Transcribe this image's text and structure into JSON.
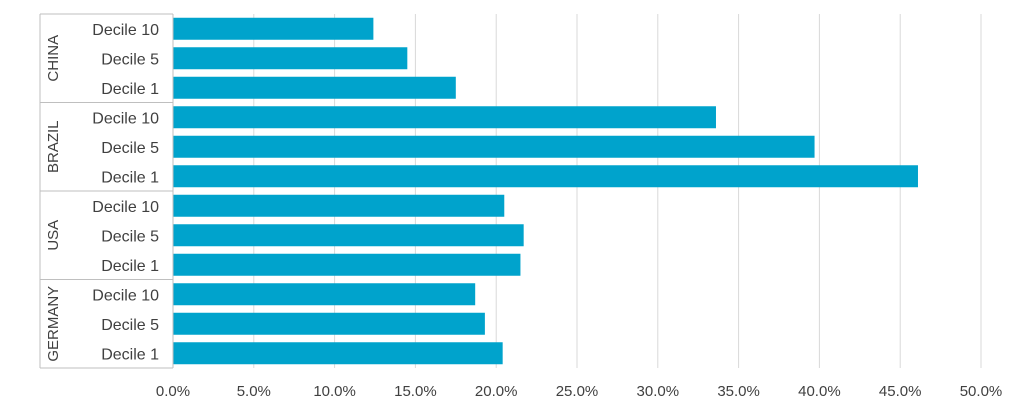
{
  "chart_data": {
    "type": "bar",
    "orientation": "horizontal",
    "title": "",
    "xlabel": "",
    "ylabel": "",
    "xlim": [
      0,
      50
    ],
    "x_ticks": [
      "0.0%",
      "5.0%",
      "10.0%",
      "15.0%",
      "20.0%",
      "25.0%",
      "30.0%",
      "35.0%",
      "40.0%",
      "45.0%",
      "50.0%"
    ],
    "grid": "vertical",
    "bar_color": "#00A3CC",
    "groups": [
      {
        "name": "CHINA",
        "categories": [
          "Decile 10",
          "Decile 5",
          "Decile 1"
        ],
        "values": [
          12.4,
          14.5,
          17.5
        ]
      },
      {
        "name": "BRAZIL",
        "categories": [
          "Decile 10",
          "Decile 5",
          "Decile 1"
        ],
        "values": [
          33.6,
          39.7,
          46.1
        ]
      },
      {
        "name": "USA",
        "categories": [
          "Decile 10",
          "Decile 5",
          "Decile 1"
        ],
        "values": [
          20.5,
          21.7,
          21.5
        ]
      },
      {
        "name": "GERMANY",
        "categories": [
          "Decile 10",
          "Decile 5",
          "Decile 1"
        ],
        "values": [
          18.7,
          19.3,
          20.4
        ]
      }
    ]
  }
}
